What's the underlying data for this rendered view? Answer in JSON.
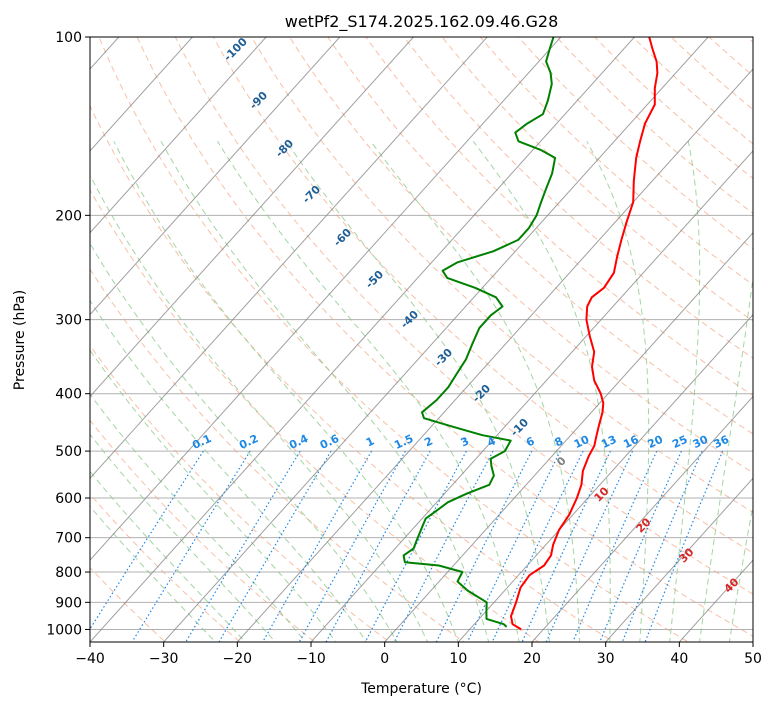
{
  "chart_data": {
    "type": "line",
    "title": "wetPf2_S174.2025.162.09.46.G28",
    "xlabel": "Temperature (°C)",
    "ylabel": "Pressure (hPa)",
    "xlim": [
      -40,
      50
    ],
    "ylim": [
      1050,
      100
    ],
    "y_scale": "log",
    "grid": true,
    "x_ticks": [
      -40,
      -30,
      -20,
      -10,
      0,
      10,
      20,
      30,
      40,
      50
    ],
    "y_ticks": [
      100,
      200,
      300,
      400,
      500,
      600,
      700,
      800,
      900,
      1000
    ],
    "x_tick_labels": [
      "−40",
      "−30",
      "−20",
      "−10",
      "0",
      "10",
      "20",
      "30",
      "40",
      "50"
    ],
    "y_tick_labels": [
      "100",
      "200",
      "300",
      "400",
      "500",
      "600",
      "700",
      "800",
      "900",
      "1000"
    ],
    "series": [
      {
        "color": "#ff0000",
        "points": [
          [
            17.0,
            1000
          ],
          [
            15.2,
            980
          ],
          [
            14.0,
            950
          ],
          [
            13.0,
            900
          ],
          [
            11.8,
            850
          ],
          [
            11.5,
            810
          ],
          [
            12.3,
            780
          ],
          [
            12.0,
            750
          ],
          [
            11.0,
            720
          ],
          [
            10.0,
            680
          ],
          [
            9.5,
            640
          ],
          [
            8.5,
            600
          ],
          [
            7.5,
            570
          ],
          [
            6.0,
            540
          ],
          [
            5.0,
            510
          ],
          [
            4.5,
            490
          ],
          [
            3.5,
            470
          ],
          [
            2.5,
            450
          ],
          [
            1.5,
            430
          ],
          [
            0.5,
            415
          ],
          [
            -1.0,
            400
          ],
          [
            -3.5,
            380
          ],
          [
            -5.5,
            360
          ],
          [
            -7.0,
            340
          ],
          [
            -9.5,
            320
          ],
          [
            -12.0,
            300
          ],
          [
            -13.5,
            285
          ],
          [
            -14.0,
            275
          ],
          [
            -13.5,
            265
          ],
          [
            -14.0,
            250
          ],
          [
            -15.5,
            235
          ],
          [
            -17.0,
            220
          ],
          [
            -18.5,
            205
          ],
          [
            -20.0,
            190
          ],
          [
            -22.5,
            175
          ],
          [
            -25.0,
            160
          ],
          [
            -26.5,
            150
          ],
          [
            -28.0,
            140
          ],
          [
            -29.0,
            130
          ],
          [
            -31.0,
            122
          ],
          [
            -32.5,
            115
          ],
          [
            -34.0,
            110
          ],
          [
            -36.0,
            105
          ],
          [
            -38.0,
            100
          ]
        ]
      },
      {
        "color": "#008000",
        "points": [
          [
            14.7,
            990
          ],
          [
            14.0,
            980
          ],
          [
            11.0,
            960
          ],
          [
            10.0,
            930
          ],
          [
            9.0,
            900
          ],
          [
            5.0,
            860
          ],
          [
            2.5,
            830
          ],
          [
            2.0,
            800
          ],
          [
            -2.0,
            780
          ],
          [
            -7.0,
            770
          ],
          [
            -8.0,
            750
          ],
          [
            -7.5,
            730
          ],
          [
            -8.0,
            710
          ],
          [
            -8.5,
            690
          ],
          [
            -9.0,
            670
          ],
          [
            -9.5,
            650
          ],
          [
            -9.0,
            630
          ],
          [
            -8.5,
            610
          ],
          [
            -7.0,
            590
          ],
          [
            -5.0,
            570
          ],
          [
            -5.5,
            550
          ],
          [
            -7.0,
            530
          ],
          [
            -8.0,
            515
          ],
          [
            -7.0,
            500
          ],
          [
            -7.5,
            480
          ],
          [
            -12.0,
            470
          ],
          [
            -17.0,
            455
          ],
          [
            -22.0,
            440
          ],
          [
            -23.0,
            430
          ],
          [
            -22.5,
            410
          ],
          [
            -22.5,
            390
          ],
          [
            -23.0,
            370
          ],
          [
            -23.5,
            350
          ],
          [
            -24.5,
            330
          ],
          [
            -25.5,
            310
          ],
          [
            -25.5,
            295
          ],
          [
            -25.0,
            285
          ],
          [
            -27.0,
            275
          ],
          [
            -31.0,
            265
          ],
          [
            -36.0,
            255
          ],
          [
            -37.5,
            248
          ],
          [
            -36.5,
            240
          ],
          [
            -33.0,
            230
          ],
          [
            -31.0,
            220
          ],
          [
            -31.0,
            210
          ],
          [
            -31.5,
            200
          ],
          [
            -32.5,
            190
          ],
          [
            -33.5,
            180
          ],
          [
            -34.5,
            170
          ],
          [
            -36.0,
            160
          ],
          [
            -39.0,
            155
          ],
          [
            -43.0,
            150
          ],
          [
            -44.5,
            145
          ],
          [
            -44.0,
            140
          ],
          [
            -43.0,
            135
          ],
          [
            -44.0,
            128
          ],
          [
            -45.5,
            120
          ],
          [
            -47.0,
            115
          ],
          [
            -49.0,
            110
          ],
          [
            -50.0,
            105
          ],
          [
            -51.0,
            100
          ]
        ]
      }
    ],
    "dry_adiabat_labels": [
      "-100",
      "-90",
      "-80",
      "-70",
      "-60",
      "-50",
      "-40",
      "-30",
      "-20",
      "-10"
    ],
    "moist_adiabat_labels": [
      "0",
      "10",
      "20",
      "30",
      "40"
    ],
    "mixing_ratio_labels": [
      "0.1",
      "0.2",
      "0.4",
      "0.6",
      "1",
      "1.5",
      "2",
      "3",
      "4",
      "6",
      "8",
      "10",
      "13",
      "16",
      "20",
      "25",
      "30",
      "36"
    ],
    "colors": {
      "temperature": "#ff0000",
      "dewpoint": "#008000",
      "dry_adiabat": "#f4a582",
      "moist_adiabat": "#8fc98f",
      "mixing_ratio": "#1e88e5",
      "isotherm": "#808080",
      "dry_label": "#1f5f96",
      "moist_label": "#d62728"
    }
  }
}
